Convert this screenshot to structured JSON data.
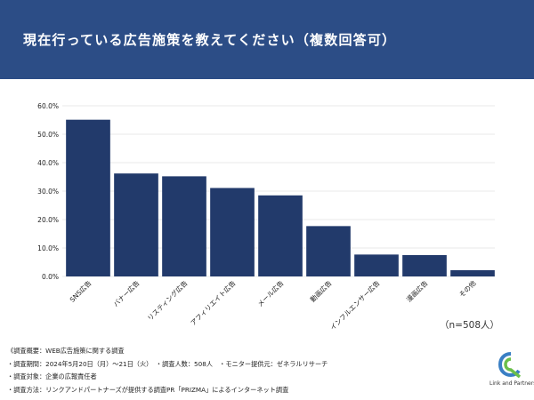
{
  "header": {
    "title": "現在行っている広告施策を教えてください（複数回答可）",
    "bg_color": "#2c4d86"
  },
  "chart_data": {
    "type": "bar",
    "categories": [
      "SNS広告",
      "バナー広告",
      "リスティング広告",
      "アフィリエイト広告",
      "メール広告",
      "動画広告",
      "インフルエンサー広告",
      "漫画広告",
      "その他"
    ],
    "values": [
      55.1,
      36.2,
      35.2,
      31.1,
      28.5,
      17.7,
      7.7,
      7.5,
      2.2
    ],
    "yticks": [
      "0.0%",
      "10.0%",
      "20.0%",
      "30.0%",
      "40.0%",
      "50.0%",
      "60.0%"
    ],
    "ylim": [
      0,
      60
    ],
    "bar_color": "#223a6b",
    "grid": true,
    "legend": "none"
  },
  "note": "（n=508人）",
  "footer": {
    "lines": [
      "《調査概要：WEB広告施策に関する調査",
      "・調査期間：2024年5月20日（月）～21日（火）　・調査人数：508人　・モニター提供元：ゼネラルリサーチ",
      "・調査対象：企業の広報責任者",
      "・調査方法：リンクアンドパートナーズが提供する調査PR「PRIZMA」によるインターネット調査"
    ]
  },
  "logo": {
    "text": "Link and Partners"
  }
}
